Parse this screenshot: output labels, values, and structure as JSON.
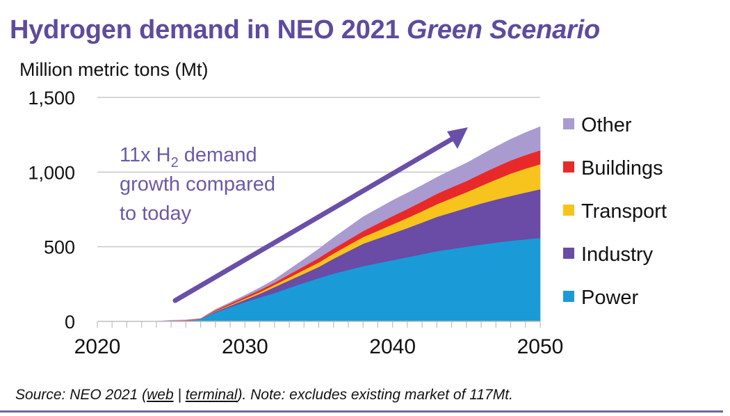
{
  "header": {
    "title_main": "Hydrogen demand in NEO 2021 ",
    "title_italic": "Green Scenario",
    "unit_label": "Million metric tons (Mt)"
  },
  "annotation": {
    "line1_prefix": "11x H",
    "line1_sub": "2",
    "line1_suffix": " demand",
    "line2": "growth compared",
    "line3": "to today"
  },
  "footer": {
    "source_prefix": "Source: NEO 2021 (",
    "link_web": "web",
    "separator": " | ",
    "link_terminal": "terminal",
    "source_suffix": "). Note: excludes existing market of 117Mt."
  },
  "colors": {
    "title": "#5e4b9e",
    "annotation": "#6a5aa8",
    "arrow": "#6a4fa8",
    "grid": "#c8c8c8"
  },
  "chart_data": {
    "type": "area",
    "stacked": true,
    "title": "Hydrogen demand in NEO 2021 Green Scenario",
    "ylabel": "Million metric tons (Mt)",
    "xlabel": "",
    "x": [
      2020,
      2021,
      2022,
      2023,
      2024,
      2025,
      2026,
      2027,
      2028,
      2029,
      2030,
      2031,
      2032,
      2033,
      2034,
      2035,
      2036,
      2037,
      2038,
      2039,
      2040,
      2041,
      2042,
      2043,
      2044,
      2045,
      2046,
      2047,
      2048,
      2049,
      2050
    ],
    "xlim": [
      2020,
      2050
    ],
    "ylim": [
      0,
      1500
    ],
    "yticks": [
      0,
      500,
      1000,
      1500
    ],
    "ytick_labels": [
      "0",
      "500",
      "1,000",
      "1,500"
    ],
    "xticks": [
      2020,
      2030,
      2040,
      2050
    ],
    "xtick_labels": [
      "2020",
      "2030",
      "2040",
      "2050"
    ],
    "grid": true,
    "legend_position": "right",
    "series": [
      {
        "name": "Power",
        "color": "#1a9bd7",
        "values": [
          0,
          0,
          0,
          0,
          0,
          0,
          2,
          15,
          60,
          95,
          130,
          160,
          190,
          225,
          258,
          290,
          320,
          345,
          370,
          390,
          410,
          430,
          450,
          470,
          485,
          500,
          515,
          528,
          540,
          550,
          559
        ]
      },
      {
        "name": "Industry",
        "color": "#6a4ba6",
        "values": [
          0,
          0,
          0,
          0,
          0,
          0,
          1,
          2,
          6,
          10,
          15,
          25,
          40,
          50,
          62,
          75,
          100,
          125,
          150,
          165,
          180,
          195,
          212,
          230,
          245,
          260,
          275,
          288,
          300,
          313,
          326
        ]
      },
      {
        "name": "Transport",
        "color": "#f7c41d",
        "values": [
          0,
          0,
          0,
          0,
          0,
          1,
          1,
          1,
          3,
          5,
          8,
          11,
          15,
          20,
          25,
          30,
          35,
          40,
          45,
          52,
          60,
          68,
          76,
          85,
          95,
          105,
          118,
          134,
          150,
          160,
          168
        ]
      },
      {
        "name": "Buildings",
        "color": "#e8292a",
        "values": [
          0,
          0,
          0,
          0,
          1,
          4,
          4,
          1,
          6,
          10,
          12,
          14,
          15,
          20,
          25,
          30,
          33,
          36,
          40,
          48,
          55,
          60,
          65,
          70,
          73,
          75,
          80,
          84,
          88,
          91,
          93
        ]
      },
      {
        "name": "Other",
        "color": "#a99bd0",
        "values": [
          0,
          0,
          0,
          0,
          0,
          3,
          2,
          1,
          5,
          7,
          10,
          15,
          20,
          33,
          46,
          60,
          72,
          84,
          95,
          100,
          105,
          107,
          108,
          110,
          115,
          120,
          127,
          135,
          142,
          150,
          158
        ]
      }
    ],
    "legend_order": [
      "Other",
      "Buildings",
      "Transport",
      "Industry",
      "Power"
    ]
  }
}
